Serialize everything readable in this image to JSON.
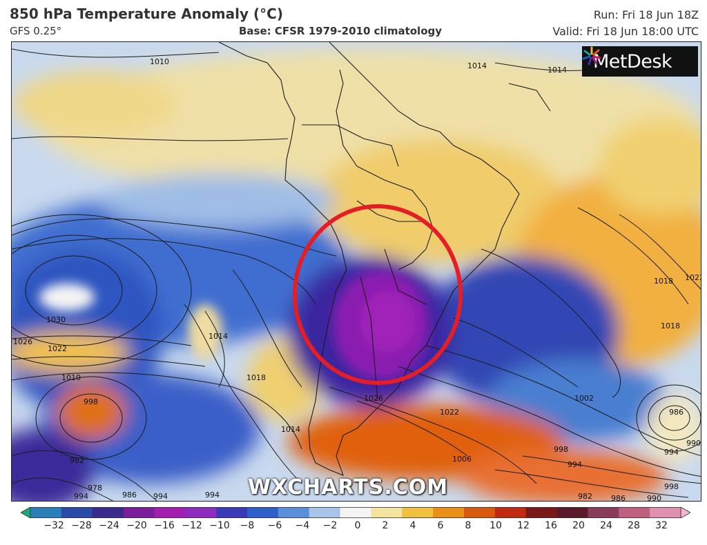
{
  "header": {
    "title": "850 hPa Temperature Anomaly (°C)",
    "model": "GFS 0.25°",
    "base": "Base: CFSR 1979-2010 climatology",
    "run": "Run: Fri 18 Jun 18Z",
    "valid": "Valid: Fri 18 Jun 18:00 UTC"
  },
  "logo": {
    "text": "MetDesk",
    "icon": "sunburst-icon"
  },
  "watermark": "WXCHARTS.COM",
  "isobar_labels": [
    "1010",
    "1018",
    "1014",
    "1014",
    "1030",
    "1026",
    "1022",
    "1010",
    "998",
    "1014",
    "1018",
    "1026",
    "1022",
    "1014",
    "1006",
    "998",
    "994",
    "982",
    "978",
    "986",
    "994",
    "1018",
    "1022",
    "1002",
    "986",
    "990",
    "994",
    "998",
    "994",
    "982",
    "986",
    "990",
    "994"
  ],
  "colorbar": {
    "ticks": [
      "−32",
      "−28",
      "−24",
      "−20",
      "−16",
      "−12",
      "−10",
      "−8",
      "−6",
      "−4",
      "−2",
      "0",
      "2",
      "4",
      "6",
      "8",
      "10",
      "12",
      "16",
      "20",
      "24",
      "28",
      "32"
    ],
    "colors": [
      "#1fa67c",
      "#2a7fb8",
      "#2a4aa8",
      "#3a2a8a",
      "#7a1f9a",
      "#a21fb0",
      "#8e2cc0",
      "#3a3ab8",
      "#2f5fc8",
      "#5a8ed8",
      "#a8c4e8",
      "#f4f4f4",
      "#f4e4a0",
      "#f0c040",
      "#e89018",
      "#d85a10",
      "#c02a10",
      "#7a1a18",
      "#5a1a2a",
      "#8a3a5a",
      "#c06080",
      "#e090b0",
      "#f0b8d0"
    ]
  },
  "annotation": {
    "circle_color": "#e51e25"
  }
}
